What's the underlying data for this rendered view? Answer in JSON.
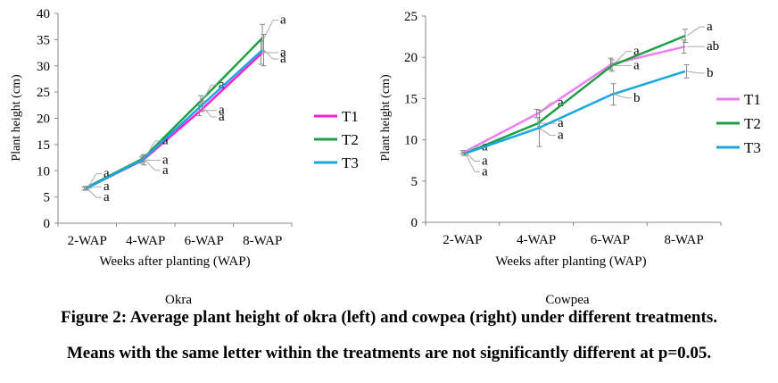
{
  "chart_data": [
    {
      "type": "line",
      "title": "Okra",
      "xlabel": "Weeks after planting (WAP)",
      "ylabel": "Plant height (cm)",
      "categories": [
        "2-WAP",
        "4-WAP",
        "6-WAP",
        "8-WAP"
      ],
      "ylim": [
        0,
        40
      ],
      "yticks": [
        0,
        5,
        10,
        15,
        20,
        25,
        30,
        35,
        40
      ],
      "grid": false,
      "legend_position": "right",
      "series": [
        {
          "name": "T1",
          "color": "#ff1fd6",
          "values": [
            6.6,
            12.0,
            21.5,
            32.5
          ],
          "errors": [
            0.3,
            0.6,
            1.0,
            2.2
          ],
          "letters": [
            "a",
            "a",
            "a",
            "a"
          ]
        },
        {
          "name": "T2",
          "color": "#1fa046",
          "values": [
            6.7,
            12.3,
            23.3,
            35.3
          ],
          "errors": [
            0.3,
            0.6,
            1.0,
            2.6
          ],
          "letters": [
            "a",
            "a",
            "a",
            "a"
          ]
        },
        {
          "name": "T3",
          "color": "#19a7e0",
          "values": [
            6.6,
            12.1,
            22.3,
            33.0
          ],
          "errors": [
            0.3,
            1.0,
            1.0,
            3.0
          ],
          "letters": [
            "a",
            "a",
            "a",
            "a"
          ]
        }
      ]
    },
    {
      "type": "line",
      "title": "Cowpea",
      "xlabel": "Weeks after planting (WAP)",
      "ylabel": "Plant height (cm)",
      "categories": [
        "2-WAP",
        "4-WAP",
        "6-WAP",
        "8-WAP"
      ],
      "ylim": [
        0,
        25
      ],
      "yticks": [
        0,
        5,
        10,
        15,
        20,
        25
      ],
      "grid": false,
      "legend_position": "right",
      "series": [
        {
          "name": "T1",
          "color": "#f07cf4",
          "values": [
            8.5,
            13.2,
            19.2,
            21.3
          ],
          "errors": [
            0.2,
            0.5,
            0.7,
            0.8
          ],
          "letters": [
            "a",
            "a",
            "a",
            "ab"
          ]
        },
        {
          "name": "T2",
          "color": "#1fa046",
          "values": [
            8.3,
            12.0,
            19.0,
            22.6
          ],
          "errors": [
            0.2,
            0.7,
            0.7,
            0.8
          ],
          "letters": [
            "a",
            "a",
            "a",
            "a"
          ]
        },
        {
          "name": "T3",
          "color": "#19a7e0",
          "values": [
            8.3,
            11.4,
            15.5,
            18.3
          ],
          "errors": [
            0.2,
            2.2,
            1.3,
            0.8
          ],
          "letters": [
            "a",
            "a",
            "b",
            "b"
          ]
        }
      ]
    }
  ],
  "caption": {
    "line1": "Figure 2: Average plant height of okra (left) and cowpea (right) under different treatments.",
    "line2": "Means with the same letter within the treatments are not significantly different at p=0.05."
  }
}
